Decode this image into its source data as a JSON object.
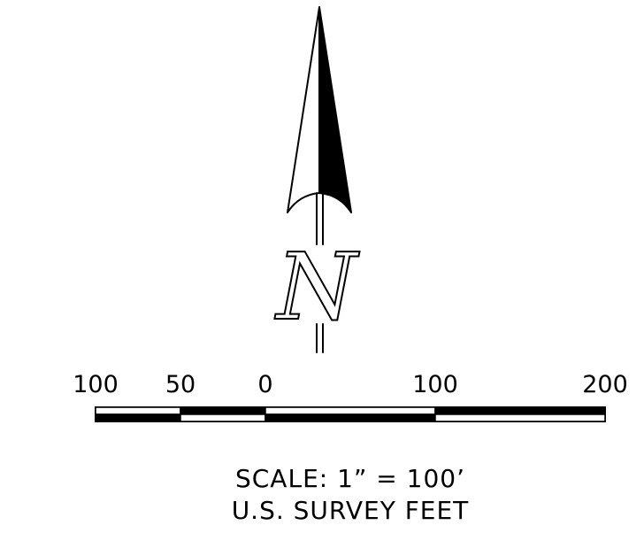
{
  "north_arrow": {
    "letter": "N"
  },
  "scale_bar": {
    "ticks": [
      "100",
      "50",
      "0",
      "100",
      "200"
    ],
    "tick_values_ft": [
      -100,
      -50,
      0,
      100,
      200
    ],
    "segment_fill": [
      "white",
      "black",
      "white",
      "black"
    ]
  },
  "caption": {
    "scale_line": "SCALE:  1”  =  100’",
    "units_line": "U.S.  SURVEY  FEET"
  },
  "colors": {
    "ink": "#000000",
    "paper": "#ffffff"
  }
}
